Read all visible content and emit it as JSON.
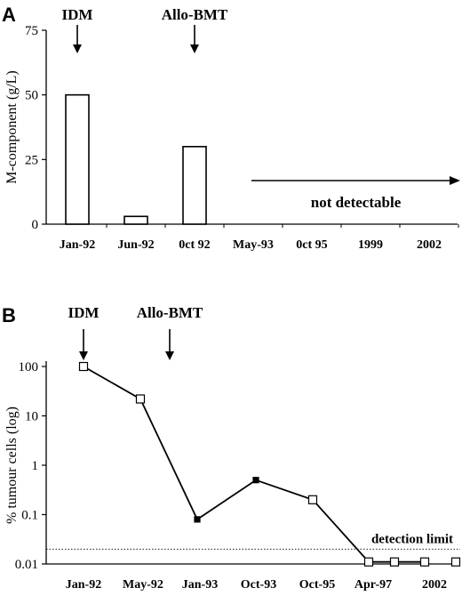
{
  "chart_data": [
    {
      "type": "bar",
      "panel_label": "A",
      "ylabel": "M-component (g/L)",
      "xlabel": "",
      "ylim": [
        0,
        75
      ],
      "yticks": [
        "0",
        "25",
        "50",
        "75"
      ],
      "categories": [
        "Jan-92",
        "Jun-92",
        "0ct 92",
        "May-93",
        "0ct 95",
        "1999",
        "2002"
      ],
      "values": [
        50,
        3,
        30,
        null,
        null,
        null,
        null
      ],
      "annotations": [
        {
          "text": "IDM",
          "at_category": "Jan-92"
        },
        {
          "text": "Allo-BMT",
          "at_category": "0ct 92"
        },
        {
          "text": "not detectable",
          "from_category": "May-93",
          "to_category": "2002"
        }
      ]
    },
    {
      "type": "line",
      "panel_label": "B",
      "ylabel": "% tumour cells (log)",
      "xlabel": "",
      "yscale": "log",
      "ylim": [
        0.01,
        100
      ],
      "yticks": [
        "100",
        "10",
        "1",
        "0.1",
        "0.01"
      ],
      "categories": [
        "Jan-92",
        "May-92",
        "Jan-93",
        "Oct-93",
        "Oct-95",
        "Apr-97",
        "2002"
      ],
      "points": [
        {
          "x": "Jan-92",
          "y": 100,
          "marker": "open"
        },
        {
          "x": "May-92",
          "y": 22,
          "marker": "open"
        },
        {
          "x": "Jan-93",
          "y": 0.08,
          "marker": "filled"
        },
        {
          "x": "Oct-93",
          "y": 0.5,
          "marker": "filled"
        },
        {
          "x": "Oct-95",
          "y": 0.2,
          "marker": "open"
        },
        {
          "x": "Apr-97",
          "y": 0.011,
          "marker": "open"
        },
        {
          "x": "Apr-97/2002",
          "y": 0.011,
          "marker": "open"
        },
        {
          "x": "2002",
          "y": 0.011,
          "marker": "open"
        },
        {
          "x": "after 2002",
          "y": 0.011,
          "marker": "open"
        }
      ],
      "reference_line": {
        "label": "detection limit",
        "y": 0.02
      },
      "annotations": [
        {
          "text": "IDM",
          "at_category": "Jan-92"
        },
        {
          "text": "Allo-BMT",
          "at_category": "between May-92 and Jan-93"
        }
      ]
    }
  ]
}
